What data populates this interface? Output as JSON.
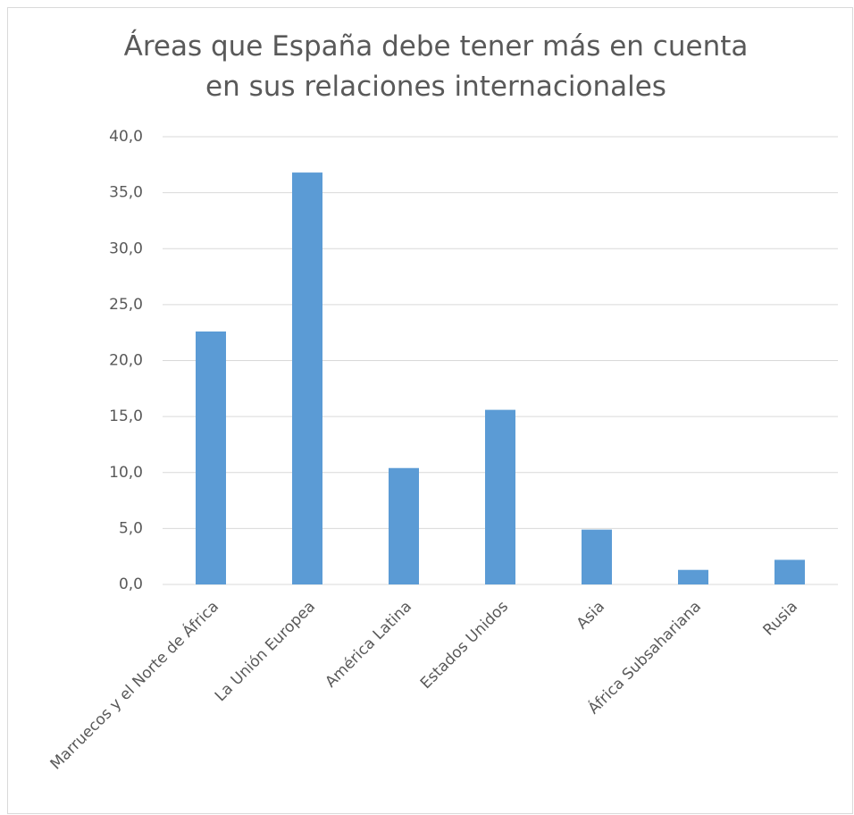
{
  "chart_data": {
    "type": "bar",
    "title": "Áreas que España debe tener más en cuenta en sus relaciones internacionales",
    "categories": [
      "Marruecos y el Norte de África",
      "La Unión Europea",
      "América Latina",
      "Estados Unidos",
      "Asia",
      "África Subsahariana",
      "Rusia"
    ],
    "values": [
      22.6,
      36.8,
      10.4,
      15.6,
      4.9,
      1.3,
      2.2
    ],
    "color": "#5b9bd5",
    "ylim": [
      0,
      40
    ],
    "yticks": [
      {
        "value": 0,
        "label": "0,0"
      },
      {
        "value": 5,
        "label": "5,0"
      },
      {
        "value": 10,
        "label": "10,0"
      },
      {
        "value": 15,
        "label": "15,0"
      },
      {
        "value": 20,
        "label": "20,0"
      },
      {
        "value": 25,
        "label": "25,0"
      },
      {
        "value": 30,
        "label": "30,0"
      },
      {
        "value": 35,
        "label": "35,0"
      },
      {
        "value": 40,
        "label": "40,0"
      }
    ],
    "grid": true
  }
}
